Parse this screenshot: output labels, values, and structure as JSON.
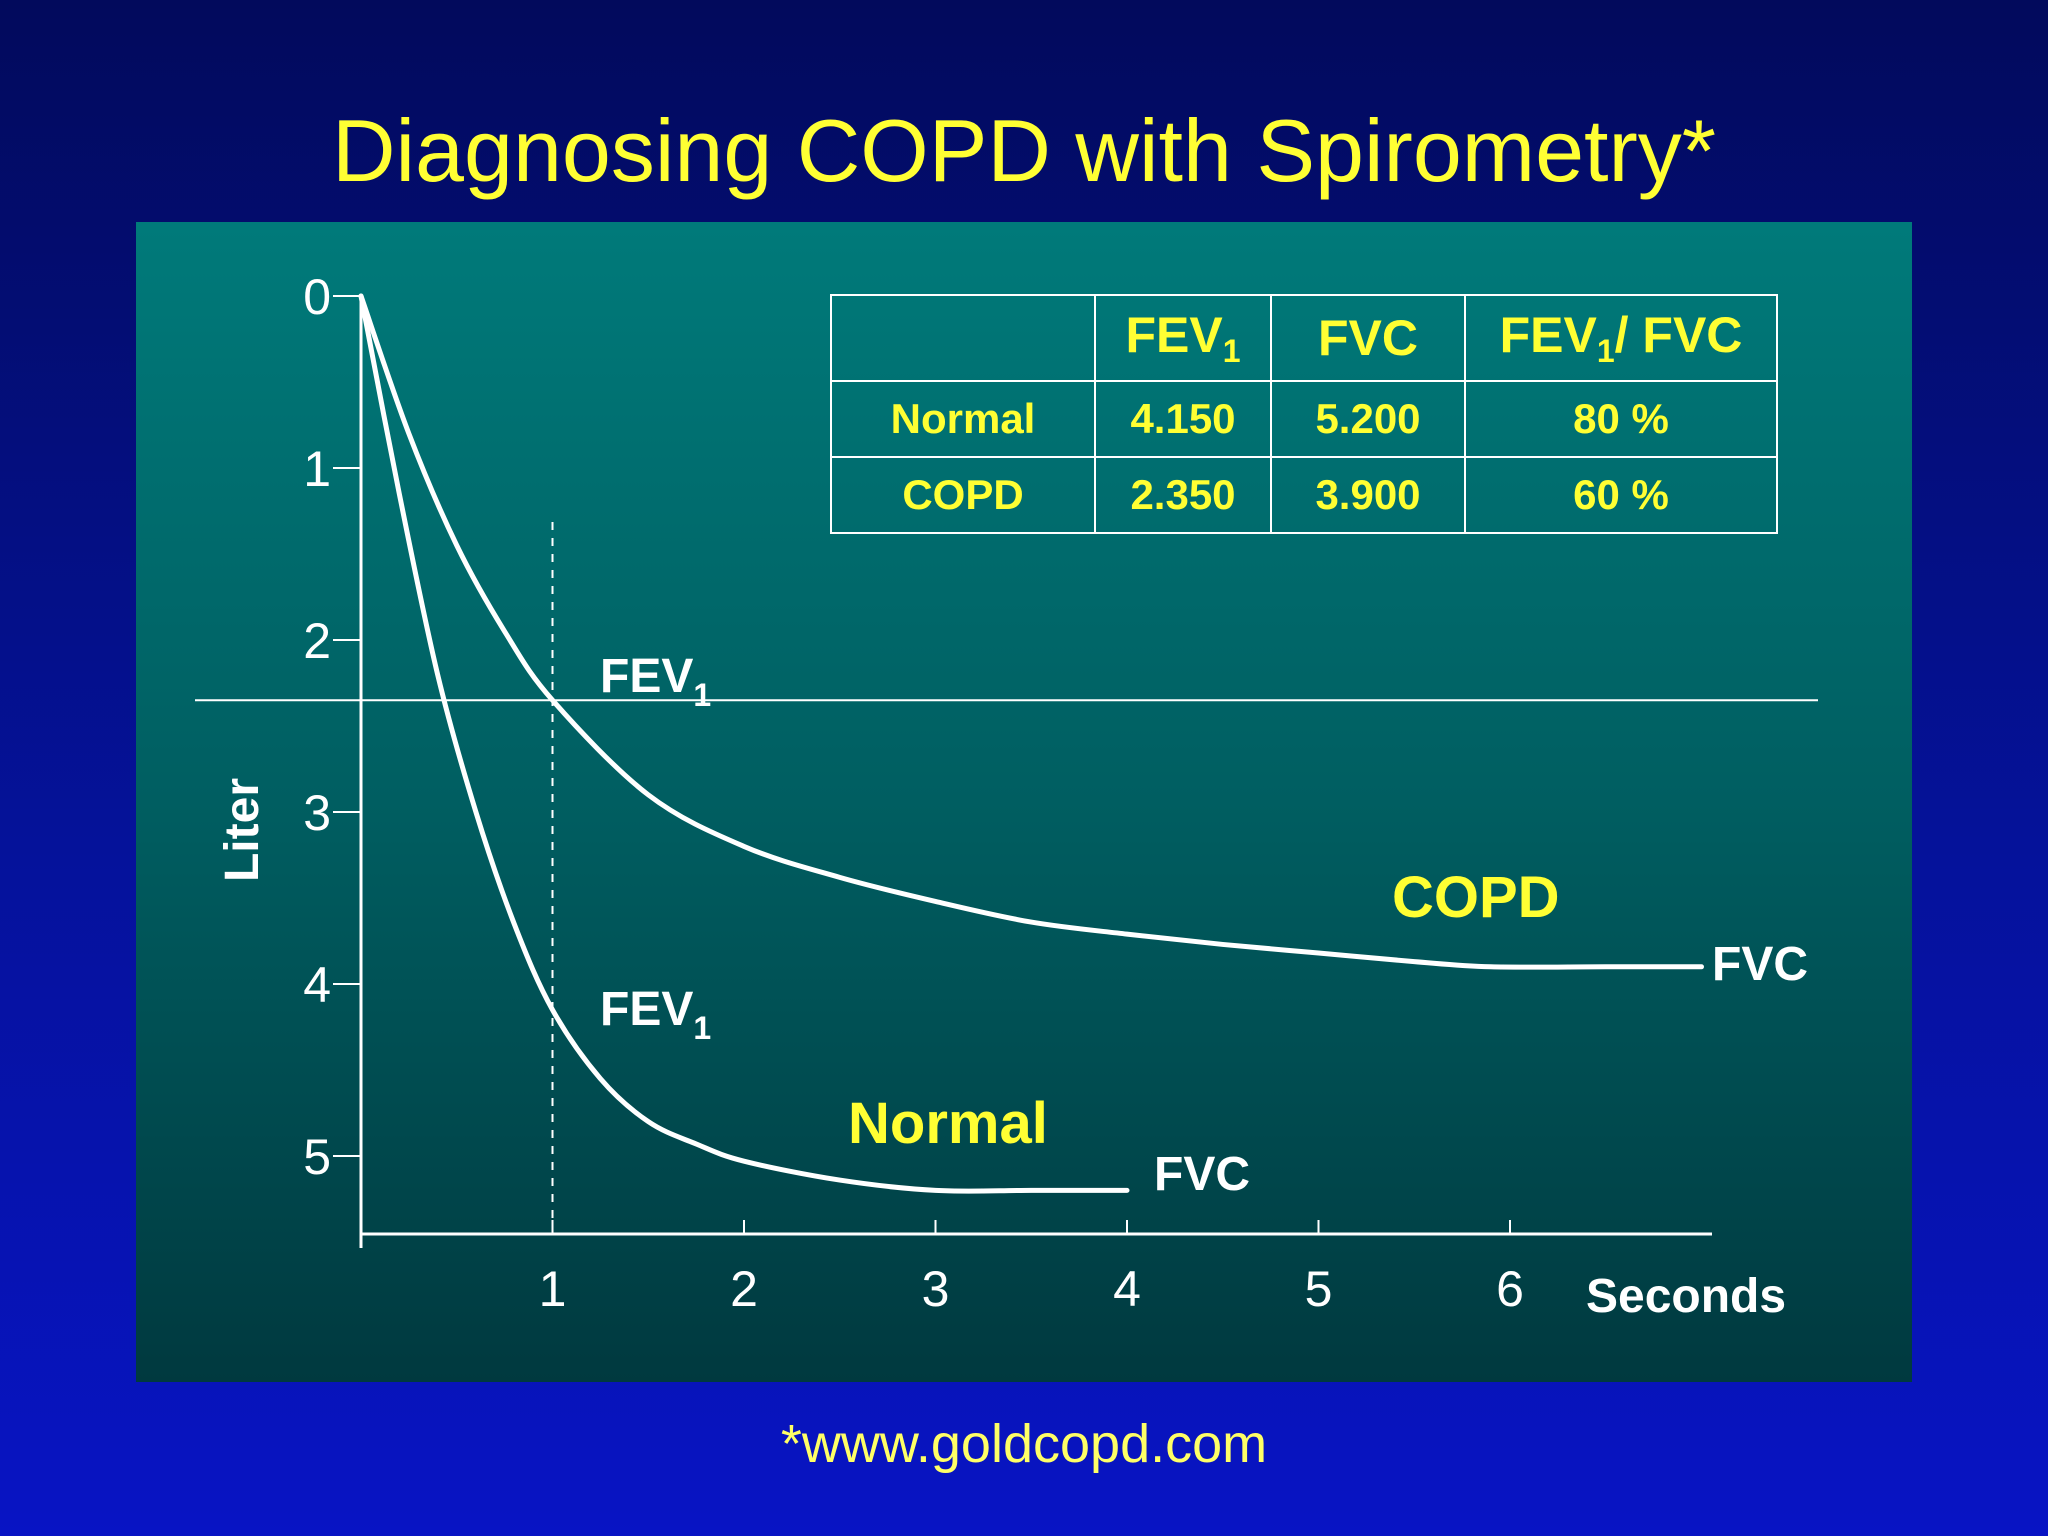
{
  "slide": {
    "title": "Diagnosing COPD with Spirometry*",
    "footer": "*www.goldcopd.com"
  },
  "colors": {
    "title": "#ffff33",
    "curve": "#ffffff",
    "panel_top": "#007a7a",
    "panel_bottom": "#00393f",
    "background": "#0814c4"
  },
  "table": {
    "headers": [
      "",
      "FEV",
      "FVC",
      "FEV"
    ],
    "header_subscripts": [
      "",
      "1",
      "",
      "1"
    ],
    "header_suffix": [
      "",
      "",
      "",
      "/ FVC"
    ],
    "rows": [
      {
        "label": "Normal",
        "fev1": "4.150",
        "fvc": "5.200",
        "ratio": "80 %"
      },
      {
        "label": "COPD",
        "fev1": "2.350",
        "fvc": "3.900",
        "ratio": "60 %"
      }
    ]
  },
  "chart_data": {
    "type": "line",
    "xlabel": "Seconds",
    "ylabel": "Liter",
    "x_ticks": [
      "1",
      "2",
      "3",
      "4",
      "5",
      "6"
    ],
    "y_ticks": [
      "0",
      "1",
      "2",
      "3",
      "4",
      "5"
    ],
    "xlim": [
      0,
      7
    ],
    "ylim": [
      0,
      5.5
    ],
    "y_inverted": true,
    "grid": false,
    "series": [
      {
        "name": "COPD",
        "x": [
          0,
          0.25,
          0.5,
          0.75,
          1.0,
          1.5,
          2,
          2.5,
          3,
          3.5,
          4,
          4.5,
          5,
          5.5,
          5.9,
          6.5,
          7.0
        ],
        "y": [
          0,
          0.8,
          1.45,
          1.95,
          2.35,
          2.9,
          3.2,
          3.38,
          3.52,
          3.64,
          3.71,
          3.77,
          3.82,
          3.87,
          3.9,
          3.9,
          3.9
        ]
      },
      {
        "name": "Normal",
        "x": [
          0,
          0.2,
          0.4,
          0.6,
          0.8,
          1.0,
          1.25,
          1.5,
          1.75,
          2,
          2.5,
          3,
          3.5,
          4.0
        ],
        "y": [
          0,
          1.15,
          2.2,
          3.0,
          3.65,
          4.15,
          4.55,
          4.8,
          4.93,
          5.03,
          5.14,
          5.2,
          5.2,
          5.2
        ]
      }
    ],
    "reference_lines": {
      "horizontal_y": 2.35,
      "vertical_x": 1
    },
    "annotations": {
      "fev": "FEV",
      "fev_sub": "1",
      "fvc": "FVC",
      "copd_label": "COPD",
      "normal_label": "Normal"
    }
  }
}
